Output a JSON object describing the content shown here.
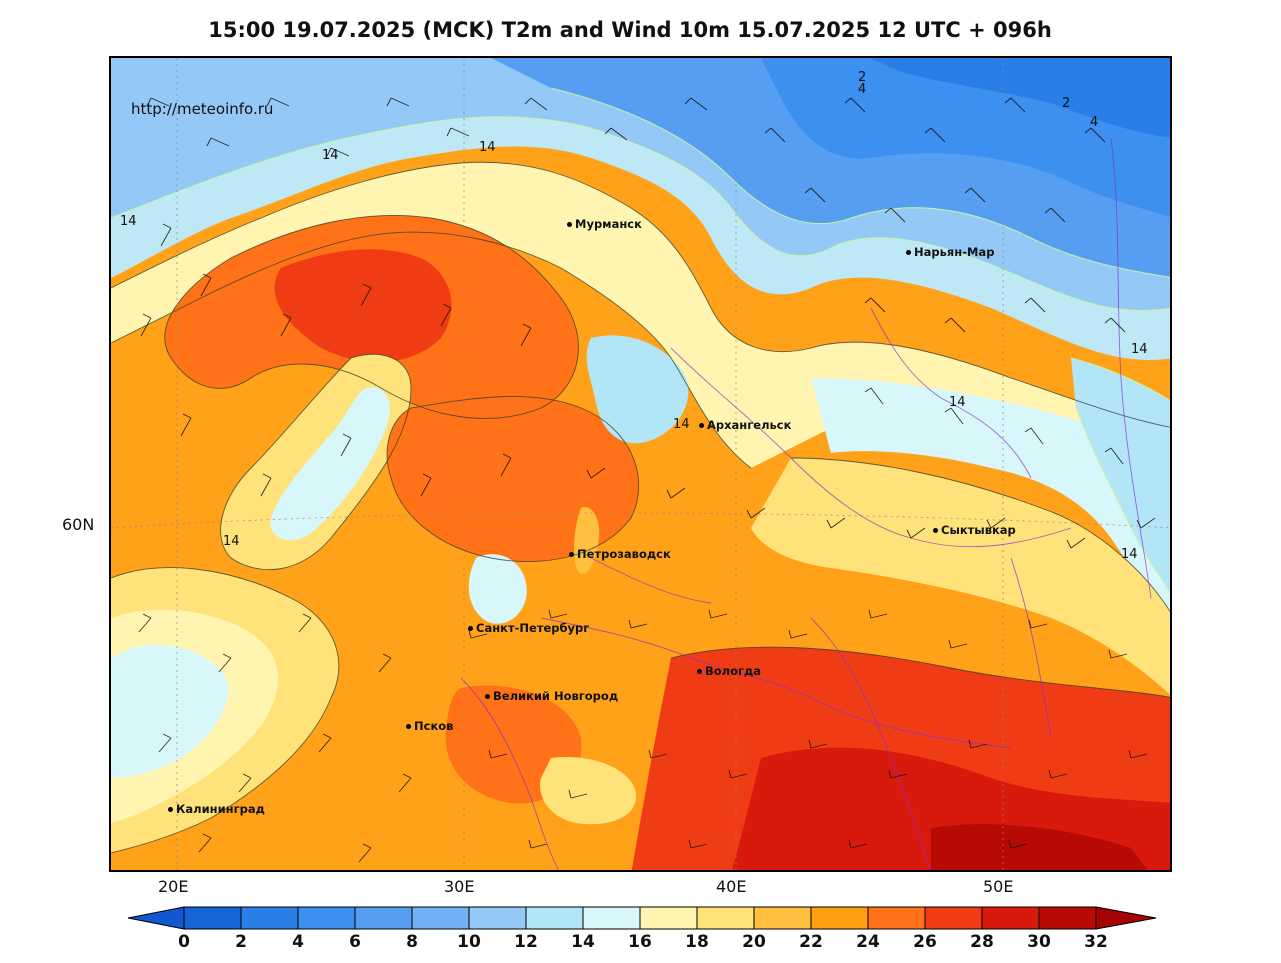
{
  "title": "15:00 19.07.2025 (MCK) T2m and Wind 10m 15.07.2025 12 UTC + 096h",
  "map": {
    "url_label": "http://meteoinfo.ru",
    "cities": [
      {
        "name": "Мурманск"
      },
      {
        "name": "Нарьян-Мар"
      },
      {
        "name": "Архангельск"
      },
      {
        "name": "Сыктывкар"
      },
      {
        "name": "Петрозаводск"
      },
      {
        "name": "Санкт-Петербург"
      },
      {
        "name": "Вологда"
      },
      {
        "name": "Великий Новгород"
      },
      {
        "name": "Псков"
      },
      {
        "name": "Калининград"
      }
    ],
    "isoline_labels": [
      "14",
      "14",
      "14",
      "14",
      "14",
      "14",
      "14",
      "14",
      "2",
      "4",
      "2",
      "4"
    ],
    "lat_label": "60N",
    "lon_labels": [
      "20E",
      "30E",
      "40E",
      "50E"
    ]
  },
  "colorbar": {
    "values": [
      "0",
      "2",
      "4",
      "6",
      "8",
      "10",
      "12",
      "14",
      "16",
      "18",
      "20",
      "22",
      "24",
      "26",
      "28",
      "30",
      "32"
    ],
    "colors": [
      "#1565d8",
      "#2a7fe6",
      "#3d8ff0",
      "#559ef2",
      "#73b1f5",
      "#93c8f7",
      "#b2e6f7",
      "#d8f7fa",
      "#fff5b0",
      "#ffe27a",
      "#ffc040",
      "#ff9f10",
      "#ff7218",
      "#f03c14",
      "#d81a0c",
      "#b80a05"
    ],
    "under_color": "#1258d0",
    "over_color": "#a40404"
  }
}
